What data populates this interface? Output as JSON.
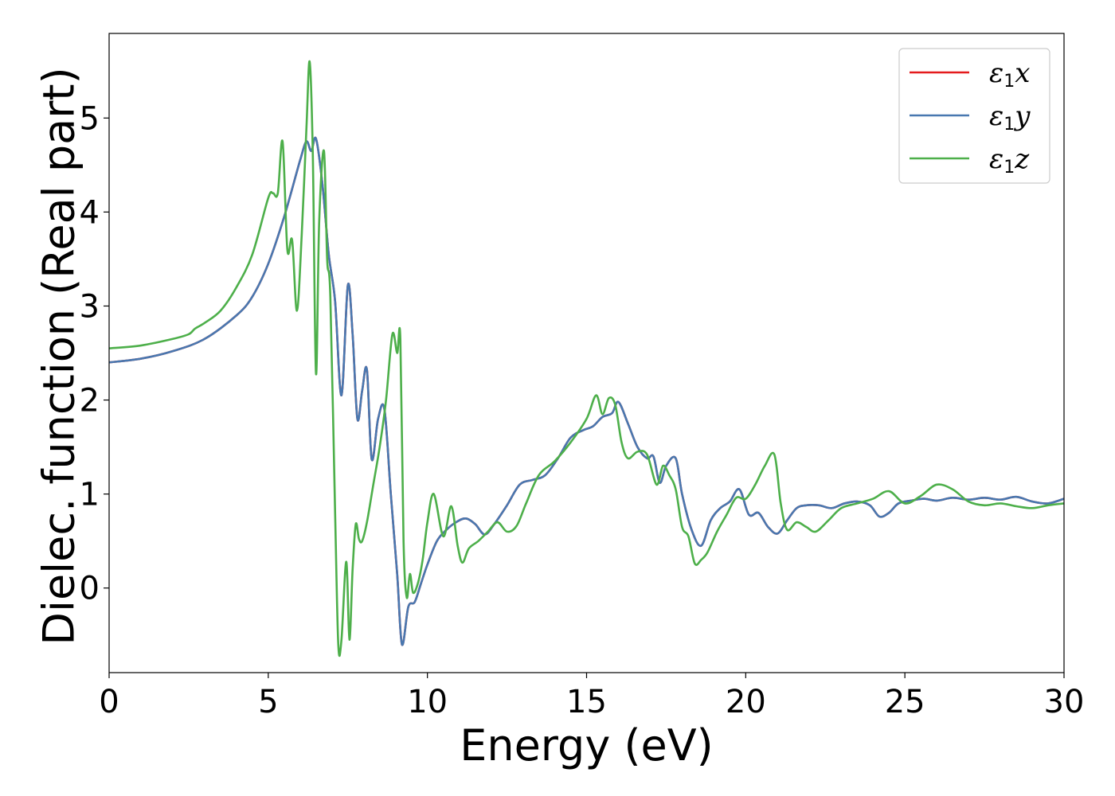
{
  "chart_data": {
    "type": "line",
    "title": "",
    "xlabel": "Energy (eV)",
    "ylabel": "Dielec. function (Real part)",
    "xlim": [
      0,
      30
    ],
    "ylim": [
      -0.9,
      5.9
    ],
    "xticks": [
      0,
      5,
      10,
      15,
      20,
      25,
      30
    ],
    "yticks": [
      0,
      1,
      2,
      3,
      4,
      5
    ],
    "grid": false,
    "legend_position": "top-right",
    "series": [
      {
        "name": "ε1x",
        "label_base": "ε",
        "label_sub": "1",
        "label_tail": "x",
        "color": "#e41a1c",
        "x": [
          0,
          1,
          2,
          3,
          4,
          4.5,
          5,
          5.5,
          6.0,
          6.2,
          6.35,
          6.5,
          6.7,
          6.9,
          7.1,
          7.3,
          7.5,
          7.65,
          7.8,
          7.95,
          8.1,
          8.25,
          8.45,
          8.65,
          8.85,
          9.05,
          9.2,
          9.4,
          9.6,
          9.8,
          10.0,
          10.3,
          10.6,
          10.9,
          11.2,
          11.5,
          11.8,
          12.1,
          12.5,
          12.9,
          13.3,
          13.7,
          14.1,
          14.5,
          14.9,
          15.2,
          15.5,
          15.8,
          16.0,
          16.3,
          16.6,
          16.9,
          17.1,
          17.3,
          17.5,
          17.8,
          18.0,
          18.3,
          18.6,
          18.9,
          19.2,
          19.5,
          19.8,
          20.1,
          20.4,
          20.7,
          21.0,
          21.3,
          21.6,
          21.9,
          22.3,
          22.7,
          23.1,
          23.5,
          23.9,
          24.2,
          24.5,
          24.8,
          25.2,
          25.6,
          26.0,
          26.5,
          27.0,
          27.5,
          28.0,
          28.5,
          29.0,
          29.5,
          30.0
        ],
        "y": [
          2.4,
          2.44,
          2.52,
          2.65,
          2.9,
          3.1,
          3.45,
          3.95,
          4.55,
          4.75,
          4.65,
          4.78,
          4.3,
          3.55,
          3.05,
          2.05,
          3.22,
          2.7,
          1.8,
          2.1,
          2.32,
          1.37,
          1.8,
          1.9,
          1.0,
          0.15,
          -0.6,
          -0.2,
          -0.15,
          0.05,
          0.25,
          0.5,
          0.62,
          0.7,
          0.74,
          0.68,
          0.57,
          0.68,
          0.88,
          1.1,
          1.15,
          1.2,
          1.38,
          1.6,
          1.68,
          1.72,
          1.82,
          1.86,
          1.98,
          1.75,
          1.5,
          1.38,
          1.4,
          1.12,
          1.3,
          1.38,
          1.0,
          0.62,
          0.45,
          0.72,
          0.85,
          0.92,
          1.05,
          0.78,
          0.8,
          0.65,
          0.58,
          0.72,
          0.85,
          0.88,
          0.88,
          0.85,
          0.9,
          0.92,
          0.88,
          0.76,
          0.8,
          0.9,
          0.93,
          0.95,
          0.93,
          0.96,
          0.94,
          0.96,
          0.94,
          0.97,
          0.92,
          0.9,
          0.95
        ]
      },
      {
        "name": "ε1y",
        "label_base": "ε",
        "label_sub": "1",
        "label_tail": "y",
        "color": "#4878b0",
        "x": [
          0,
          1,
          2,
          3,
          4,
          4.5,
          5,
          5.5,
          6.0,
          6.2,
          6.35,
          6.5,
          6.7,
          6.9,
          7.1,
          7.3,
          7.5,
          7.65,
          7.8,
          7.95,
          8.1,
          8.25,
          8.45,
          8.65,
          8.85,
          9.05,
          9.2,
          9.4,
          9.6,
          9.8,
          10.0,
          10.3,
          10.6,
          10.9,
          11.2,
          11.5,
          11.8,
          12.1,
          12.5,
          12.9,
          13.3,
          13.7,
          14.1,
          14.5,
          14.9,
          15.2,
          15.5,
          15.8,
          16.0,
          16.3,
          16.6,
          16.9,
          17.1,
          17.3,
          17.5,
          17.8,
          18.0,
          18.3,
          18.6,
          18.9,
          19.2,
          19.5,
          19.8,
          20.1,
          20.4,
          20.7,
          21.0,
          21.3,
          21.6,
          21.9,
          22.3,
          22.7,
          23.1,
          23.5,
          23.9,
          24.2,
          24.5,
          24.8,
          25.2,
          25.6,
          26.0,
          26.5,
          27.0,
          27.5,
          28.0,
          28.5,
          29.0,
          29.5,
          30.0
        ],
        "y": [
          2.4,
          2.44,
          2.52,
          2.65,
          2.9,
          3.1,
          3.45,
          3.95,
          4.55,
          4.75,
          4.65,
          4.78,
          4.3,
          3.55,
          3.05,
          2.05,
          3.22,
          2.7,
          1.8,
          2.1,
          2.32,
          1.37,
          1.8,
          1.9,
          1.0,
          0.15,
          -0.6,
          -0.2,
          -0.15,
          0.05,
          0.25,
          0.5,
          0.62,
          0.7,
          0.74,
          0.68,
          0.57,
          0.68,
          0.88,
          1.1,
          1.15,
          1.2,
          1.38,
          1.6,
          1.68,
          1.72,
          1.82,
          1.86,
          1.98,
          1.75,
          1.5,
          1.38,
          1.4,
          1.12,
          1.3,
          1.38,
          1.0,
          0.62,
          0.45,
          0.72,
          0.85,
          0.92,
          1.05,
          0.78,
          0.8,
          0.65,
          0.58,
          0.72,
          0.85,
          0.88,
          0.88,
          0.85,
          0.9,
          0.92,
          0.88,
          0.76,
          0.8,
          0.9,
          0.93,
          0.95,
          0.93,
          0.96,
          0.94,
          0.96,
          0.94,
          0.97,
          0.92,
          0.9,
          0.95
        ]
      },
      {
        "name": "ε1z",
        "label_base": "ε",
        "label_sub": "1",
        "label_tail": "z",
        "color": "#4daf4a",
        "x": [
          0,
          1,
          2,
          2.5,
          2.7,
          3,
          3.5,
          4,
          4.5,
          5.0,
          5.15,
          5.3,
          5.45,
          5.6,
          5.75,
          5.9,
          6.05,
          6.2,
          6.3,
          6.4,
          6.5,
          6.6,
          6.75,
          6.85,
          6.95,
          7.1,
          7.2,
          7.3,
          7.45,
          7.55,
          7.65,
          7.75,
          7.85,
          7.95,
          8.1,
          8.3,
          8.5,
          8.7,
          8.9,
          9.05,
          9.15,
          9.25,
          9.35,
          9.45,
          9.55,
          9.7,
          9.85,
          10.0,
          10.2,
          10.5,
          10.75,
          10.95,
          11.1,
          11.3,
          11.6,
          11.9,
          12.2,
          12.5,
          12.8,
          13.1,
          13.5,
          14.0,
          14.5,
          15.0,
          15.3,
          15.5,
          15.7,
          15.9,
          16.1,
          16.3,
          16.6,
          16.9,
          17.2,
          17.4,
          17.6,
          17.8,
          18.0,
          18.2,
          18.4,
          18.6,
          18.8,
          19.1,
          19.4,
          19.7,
          20.0,
          20.3,
          20.6,
          20.9,
          21.1,
          21.3,
          21.6,
          21.9,
          22.2,
          22.6,
          23.0,
          23.5,
          24.0,
          24.5,
          25.0,
          25.5,
          26.0,
          26.5,
          27.0,
          27.5,
          28.0,
          28.5,
          29.0,
          29.5,
          30.0
        ],
        "y": [
          2.55,
          2.58,
          2.65,
          2.7,
          2.76,
          2.82,
          2.95,
          3.2,
          3.55,
          4.15,
          4.2,
          4.2,
          4.75,
          3.6,
          3.7,
          2.95,
          3.75,
          4.9,
          5.6,
          4.6,
          2.28,
          3.9,
          4.65,
          3.5,
          3.1,
          0.8,
          -0.6,
          -0.55,
          0.28,
          -0.55,
          0.2,
          0.68,
          0.52,
          0.5,
          0.7,
          1.1,
          1.5,
          2.0,
          2.7,
          2.5,
          2.65,
          0.5,
          -0.1,
          0.15,
          -0.05,
          0.05,
          0.3,
          0.7,
          1.0,
          0.55,
          0.87,
          0.45,
          0.27,
          0.42,
          0.5,
          0.6,
          0.7,
          0.6,
          0.66,
          0.9,
          1.2,
          1.35,
          1.55,
          1.8,
          2.05,
          1.85,
          2.02,
          1.95,
          1.55,
          1.38,
          1.45,
          1.42,
          1.1,
          1.3,
          1.2,
          1.05,
          0.65,
          0.55,
          0.26,
          0.3,
          0.38,
          0.6,
          0.78,
          0.96,
          0.95,
          1.1,
          1.3,
          1.42,
          0.9,
          0.62,
          0.7,
          0.65,
          0.6,
          0.72,
          0.85,
          0.9,
          0.95,
          1.03,
          0.9,
          0.98,
          1.1,
          1.05,
          0.92,
          0.88,
          0.9,
          0.87,
          0.85,
          0.88,
          0.9
        ]
      }
    ]
  }
}
